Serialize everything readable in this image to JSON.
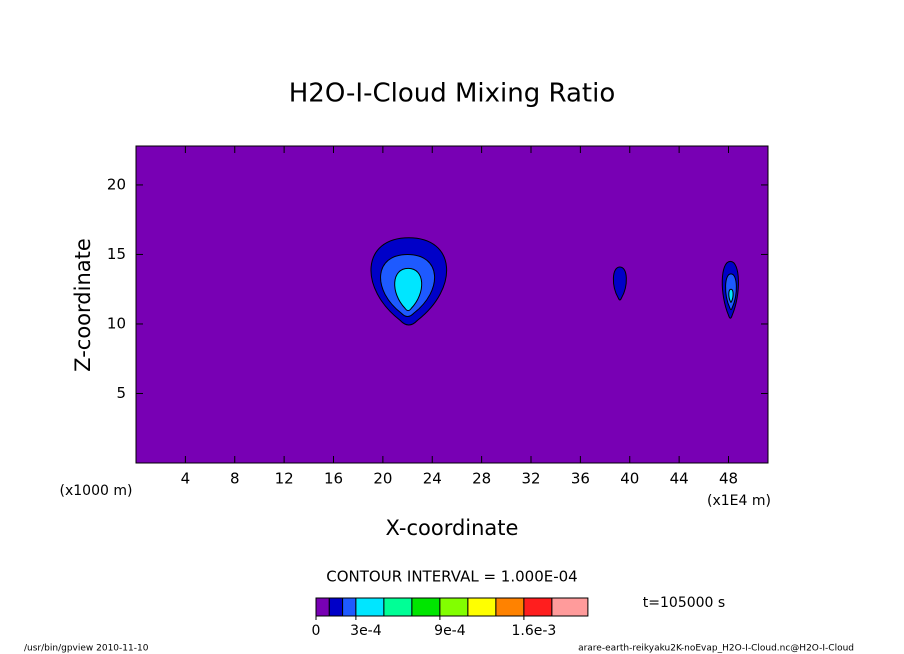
{
  "chart_data": {
    "type": "contour",
    "title": "H2O-I-Cloud Mixing Ratio",
    "x_label": "X-coordinate",
    "y_label": "Z-coordinate",
    "x_unit_note": "(x1E4 m)",
    "y_unit_note": "(x1000 m)",
    "xlim": [
      0,
      51.2
    ],
    "xticks": [
      4,
      8,
      12,
      16,
      20,
      24,
      28,
      32,
      36,
      40,
      44,
      48
    ],
    "ylim": [
      0,
      22.8
    ],
    "yticks": [
      5,
      10,
      15,
      20
    ],
    "contour_interval": "CONTOUR INTERVAL = 1.000E-04",
    "time_label": "t=105000 s",
    "footer_left": "/usr/bin/gpview  2010-11-10",
    "footer_right": "arare-earth-reikyaku2K-noEvap_H2O-I-Cloud.nc@H2O-I-Cloud",
    "colorbar": {
      "colors": [
        "#7800b4",
        "#0000c8",
        "#1e5aff",
        "#00e6ff",
        "#00ff96",
        "#00e600",
        "#82ff00",
        "#ffff00",
        "#ff8200",
        "#ff1e1e",
        "#ff9b9b"
      ],
      "bounds": [
        0,
        0.0001,
        0.0002,
        0.0003,
        0.0005,
        0.0007,
        0.0009,
        0.0011,
        0.0013,
        0.0016,
        0.002,
        0.0025
      ],
      "ticks": [
        {
          "value": 0,
          "label": "0"
        },
        {
          "value": 0.0003,
          "label": "3e-4"
        },
        {
          "value": 0.0009,
          "label": "9e-4"
        },
        {
          "value": 0.0016,
          "label": "1.6e-3"
        }
      ]
    },
    "contours": [
      {
        "level": 1,
        "x": [
          18.6,
          25.6
        ],
        "z": [
          9.6,
          16.2
        ]
      },
      {
        "level": 2,
        "x": [
          19.5,
          24.5
        ],
        "z": [
          10.3,
          15.0
        ]
      },
      {
        "level": 3,
        "x": [
          20.8,
          23.3
        ],
        "z": [
          10.8,
          14.0
        ]
      },
      {
        "level": 1,
        "x": [
          38.6,
          39.8
        ],
        "z": [
          11.6,
          14.1
        ]
      },
      {
        "level": 1,
        "x": [
          47.4,
          48.9
        ],
        "z": [
          10.2,
          14.5
        ]
      },
      {
        "level": 2,
        "x": [
          47.7,
          48.7
        ],
        "z": [
          10.9,
          13.6
        ]
      },
      {
        "level": 3,
        "x": [
          48.0,
          48.4
        ],
        "z": [
          11.5,
          12.5
        ]
      }
    ]
  }
}
